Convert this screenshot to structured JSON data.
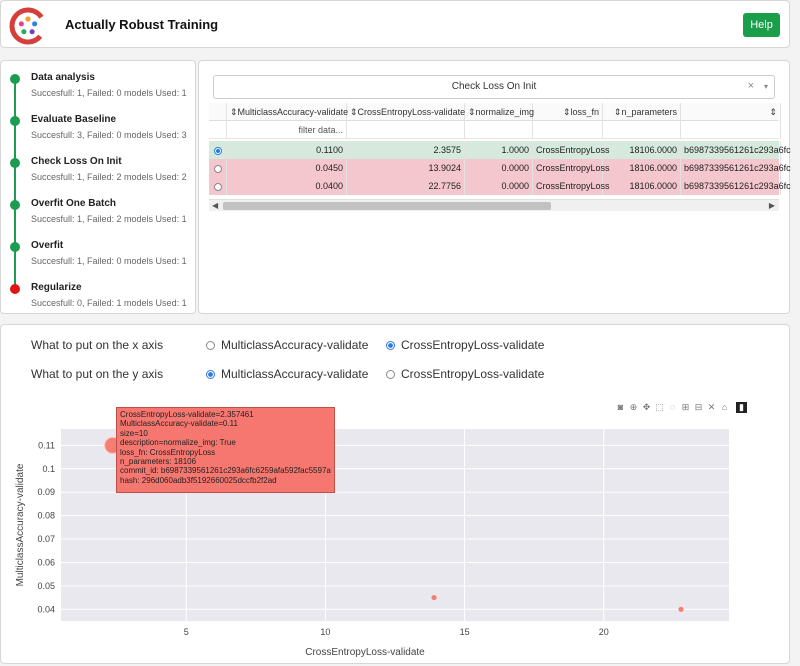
{
  "header": {
    "title": "Actually Robust Training",
    "help_label": "Help",
    "logo_colors": [
      "#d43f3a",
      "#f0a030",
      "#2e86de",
      "#7a3fbf",
      "#27ae60",
      "#e84393"
    ]
  },
  "steps": [
    {
      "name": "Data analysis",
      "sub": "Succesfull: 1, Failed: 0 models Used: 1",
      "status": "ok"
    },
    {
      "name": "Evaluate Baseline",
      "sub": "Succesfull: 3, Failed: 0 models Used: 3",
      "status": "ok"
    },
    {
      "name": "Check Loss On Init",
      "sub": "Succesfull: 1, Failed: 2 models Used: 2",
      "status": "ok"
    },
    {
      "name": "Overfit One Batch",
      "sub": "Succesfull: 1, Failed: 2 models Used: 1",
      "status": "ok"
    },
    {
      "name": "Overfit",
      "sub": "Succesfull: 1, Failed: 0 models Used: 1",
      "status": "ok"
    },
    {
      "name": "Regularize",
      "sub": "Succesfull: 0, Failed: 1 models Used: 1",
      "status": "fail"
    }
  ],
  "table": {
    "selected_step": "Check Loss On Init",
    "clear_glyph": "×",
    "caret_glyph": "▾",
    "sort_glyph": "⇕",
    "columns": [
      "MulticlassAccuracy-validate",
      "CrossEntropyLoss-validate",
      "normalize_img",
      "loss_fn",
      "n_parameters",
      ""
    ],
    "filter_placeholder": "filter data...",
    "rows": [
      {
        "selected": true,
        "status": "green",
        "cells": [
          "0.1100",
          "2.3575",
          "1.0000",
          "CrossEntropyLoss",
          "18106.0000",
          "b6987339561261c293a6fc"
        ]
      },
      {
        "selected": false,
        "status": "red",
        "cells": [
          "0.0450",
          "13.9024",
          "0.0000",
          "CrossEntropyLoss",
          "18106.0000",
          "b6987339561261c293a6fc"
        ]
      },
      {
        "selected": false,
        "status": "red",
        "cells": [
          "0.0400",
          "22.7756",
          "0.0000",
          "CrossEntropyLoss",
          "18106.0000",
          "b6987339561261c293a6fc"
        ]
      }
    ],
    "scroll_left": "◀",
    "scroll_right": "▶"
  },
  "plot": {
    "x_question": "What to put on the x axis",
    "y_question": "What to put on the y axis",
    "x_options": [
      {
        "label": "MulticlassAccuracy-validate",
        "selected": false
      },
      {
        "label": "CrossEntropyLoss-validate",
        "selected": true
      }
    ],
    "y_options": [
      {
        "label": "MulticlassAccuracy-validate",
        "selected": true
      },
      {
        "label": "CrossEntropyLoss-validate",
        "selected": false
      }
    ],
    "modebar_icons": [
      "camera-icon",
      "zoom-icon",
      "pan-icon",
      "box-select-icon",
      "lasso-icon",
      "zoom-in-icon",
      "zoom-out-icon",
      "autoscale-icon",
      "reset-axes-icon",
      "plotly-logo-icon"
    ],
    "tooltip_lines": [
      "CrossEntropyLoss-validate=2.357461",
      "MulticlassAccuracy-validate=0.11",
      "size=10",
      "description=normalize_img: True",
      "loss_fn: CrossEntropyLoss",
      "n_parameters: 18106",
      "commit_id: b6987339561261c293a6fc6259afa592fac5597a",
      "hash: 296d060adb3f5192660025dccfb2f2ad"
    ]
  },
  "chart_data": {
    "type": "scatter",
    "title": "",
    "xlabel": "CrossEntropyLoss-validate",
    "ylabel": "MulticlassAccuracy-validate",
    "xlim": [
      0.5,
      24.5
    ],
    "ylim": [
      0.035,
      0.117
    ],
    "xticks": [
      5,
      10,
      15,
      20
    ],
    "yticks": [
      0.04,
      0.05,
      0.06,
      0.07,
      0.08,
      0.09,
      0.1,
      0.11
    ],
    "ytick_labels": [
      "0.04",
      "0.05",
      "0.06",
      "0.07",
      "0.08",
      "0.09",
      "0.1",
      "0.11"
    ],
    "grid": true,
    "marker_color": "#f57e73",
    "points": [
      {
        "x": 2.3575,
        "y": 0.11,
        "size": 10
      },
      {
        "x": 13.9024,
        "y": 0.045,
        "size": 1
      },
      {
        "x": 22.7756,
        "y": 0.04,
        "size": 1
      }
    ]
  }
}
